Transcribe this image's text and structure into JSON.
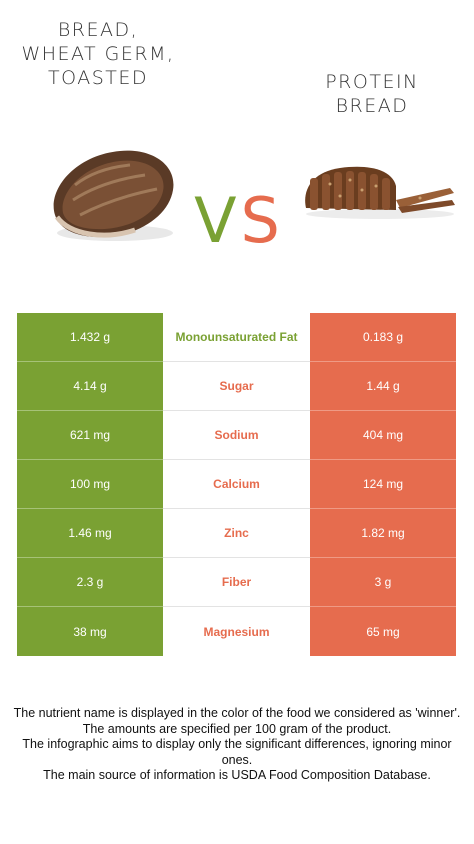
{
  "left_food": {
    "name": "BREAD, WHEAT GERM, TOASTED",
    "color": "#7aa133"
  },
  "right_food": {
    "name": "PROTEIN BREAD",
    "color": "#e66c4e"
  },
  "vs": {
    "v": "V",
    "s": "S"
  },
  "rows": [
    {
      "left": "1.432 g",
      "nutrient": "Monounsaturated Fat",
      "right": "0.183 g",
      "winner": "left"
    },
    {
      "left": "4.14 g",
      "nutrient": "Sugar",
      "right": "1.44 g",
      "winner": "right"
    },
    {
      "left": "621 mg",
      "nutrient": "Sodium",
      "right": "404 mg",
      "winner": "right"
    },
    {
      "left": "100 mg",
      "nutrient": "Calcium",
      "right": "124 mg",
      "winner": "right"
    },
    {
      "left": "1.46 mg",
      "nutrient": "Zinc",
      "right": "1.82 mg",
      "winner": "right"
    },
    {
      "left": "2.3 g",
      "nutrient": "Fiber",
      "right": "3 g",
      "winner": "right"
    },
    {
      "left": "38 mg",
      "nutrient": "Magnesium",
      "right": "65 mg",
      "winner": "right"
    }
  ],
  "footer": {
    "line1": "The nutrient name is displayed in the color of the food we considered as 'winner'.",
    "line2": "The amounts are specified per 100 gram of the product.",
    "line3": "The infographic aims to display only the significant differences, ignoring minor ones.",
    "line4": "The main source of information is USDA Food Composition Database."
  }
}
